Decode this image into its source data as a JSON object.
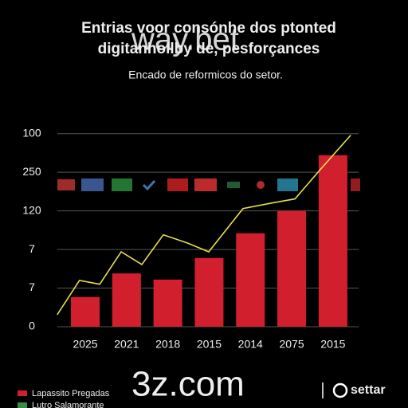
{
  "chart_data": {
    "type": "bar",
    "title": "Entrias voor consónhe dos ptonted",
    "title_line2": "digitanhollby de, pesforçances",
    "subtitle": "Encado de reformicos do setor.",
    "watermarks": [
      "way.bet",
      "3z.com"
    ],
    "brand": "settar",
    "categories": [
      "2025",
      "2021",
      "2018",
      "2015",
      "2014",
      "2075",
      "2015"
    ],
    "series": [
      {
        "name": "Lapassito Pregadas",
        "color": "#d21f2e",
        "values": [
          0.77,
          1.38,
          1.22,
          1.78,
          2.42,
          3.0,
          4.44
        ]
      },
      {
        "name": "Lutro Salamorante",
        "color": "#e6e04a",
        "type": "line",
        "x": [
          -0.68,
          -0.14,
          0.35,
          0.87,
          1.37,
          1.89,
          2.47,
          2.99,
          3.82,
          4.5,
          5.08,
          5.66,
          6.43
        ],
        "values": [
          0.31,
          1.2,
          1.1,
          1.94,
          1.61,
          2.38,
          2.17,
          1.94,
          3.06,
          3.2,
          3.31,
          4.03,
          4.96
        ]
      }
    ],
    "legend_swatch_colors": [
      "#d21f2e",
      "#3a8a4a"
    ],
    "xlim": [
      -0.676,
      6.62
    ],
    "ylim": [
      0,
      5.2
    ],
    "yticks": [
      {
        "value": 0,
        "label": "0"
      },
      {
        "value": 1,
        "label": "7"
      },
      {
        "value": 2,
        "label": "7"
      },
      {
        "value": 3,
        "label": "120"
      },
      {
        "value": 4,
        "label": "250"
      },
      {
        "value": 5,
        "label": "100"
      }
    ],
    "grid": true
  }
}
